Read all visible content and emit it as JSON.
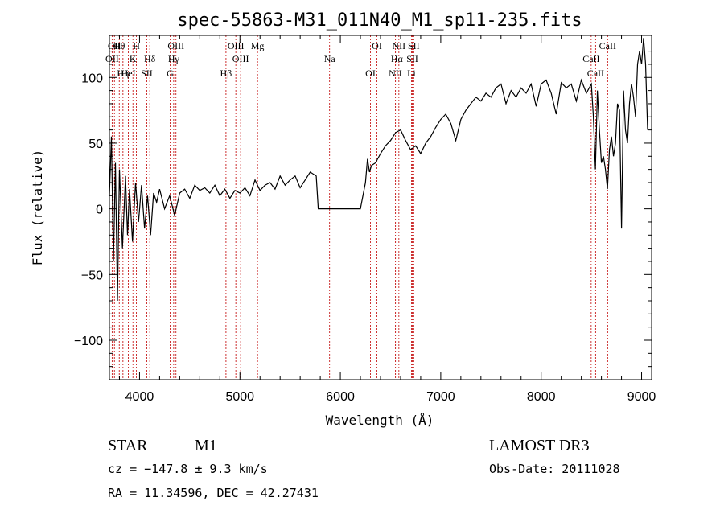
{
  "chart_data": {
    "type": "line",
    "title": "spec-55863-M31_011N40_M1_sp11-235.fits",
    "xlabel": "Wavelength (Å)",
    "ylabel": "Flux (relative)",
    "xlim": [
      3700,
      9100
    ],
    "ylim": [
      -130,
      132
    ],
    "xticks": [
      4000,
      5000,
      6000,
      7000,
      8000,
      9000
    ],
    "yticks": [
      -100,
      -50,
      0,
      50,
      100
    ],
    "grid": false,
    "series": [
      {
        "name": "flux",
        "x": [
          3700,
          3720,
          3740,
          3760,
          3780,
          3800,
          3830,
          3860,
          3880,
          3900,
          3930,
          3960,
          3990,
          4020,
          4050,
          4080,
          4110,
          4140,
          4170,
          4200,
          4250,
          4300,
          4350,
          4400,
          4450,
          4500,
          4550,
          4600,
          4650,
          4700,
          4750,
          4800,
          4850,
          4900,
          4950,
          5000,
          5050,
          5100,
          5150,
          5200,
          5250,
          5300,
          5350,
          5400,
          5450,
          5500,
          5550,
          5600,
          5650,
          5700,
          5760,
          5780,
          5800,
          5900,
          6000,
          6100,
          6200,
          6250,
          6270,
          6290,
          6310,
          6350,
          6400,
          6450,
          6500,
          6550,
          6600,
          6650,
          6700,
          6750,
          6800,
          6850,
          6900,
          6950,
          7000,
          7050,
          7100,
          7150,
          7200,
          7250,
          7300,
          7350,
          7400,
          7450,
          7500,
          7550,
          7600,
          7650,
          7700,
          7750,
          7800,
          7850,
          7900,
          7950,
          8000,
          8050,
          8100,
          8150,
          8200,
          8250,
          8300,
          8350,
          8400,
          8450,
          8500,
          8520,
          8540,
          8560,
          8580,
          8600,
          8620,
          8640,
          8660,
          8680,
          8700,
          8720,
          8740,
          8760,
          8780,
          8800,
          8820,
          8840,
          8860,
          8880,
          8900,
          8920,
          8940,
          8960,
          8980,
          9000,
          9020,
          9040,
          9060
        ],
        "y": [
          10,
          55,
          -40,
          35,
          -70,
          30,
          -30,
          25,
          -20,
          15,
          -25,
          20,
          -10,
          18,
          -15,
          10,
          -20,
          12,
          5,
          15,
          0,
          10,
          -5,
          12,
          15,
          8,
          18,
          14,
          16,
          12,
          18,
          10,
          15,
          8,
          14,
          12,
          16,
          10,
          22,
          14,
          18,
          20,
          15,
          25,
          18,
          22,
          25,
          16,
          22,
          28,
          25,
          0,
          0,
          0,
          0,
          0,
          0,
          20,
          38,
          28,
          33,
          35,
          42,
          48,
          52,
          58,
          60,
          52,
          45,
          48,
          42,
          50,
          55,
          62,
          68,
          72,
          65,
          52,
          68,
          75,
          80,
          85,
          82,
          88,
          85,
          92,
          95,
          80,
          90,
          85,
          92,
          88,
          95,
          78,
          95,
          98,
          88,
          72,
          96,
          92,
          95,
          82,
          98,
          88,
          95,
          70,
          30,
          90,
          60,
          35,
          40,
          30,
          15,
          45,
          55,
          40,
          50,
          80,
          75,
          -15,
          90,
          60,
          50,
          80,
          95,
          85,
          70,
          110,
          120,
          110,
          130,
          110,
          60
        ]
      }
    ],
    "lines": [
      {
        "label": "Hθ",
        "x": 3798
      },
      {
        "label": "OII",
        "x": 3727
      },
      {
        "label": "Hη",
        "x": 3835
      },
      {
        "label": "OII",
        "x": 3750
      },
      {
        "label": "K",
        "x": 3934
      },
      {
        "label": "HeI",
        "x": 3889
      },
      {
        "label": "H",
        "x": 3969
      },
      {
        "label": "Hδ",
        "x": 4102
      },
      {
        "label": "SII",
        "x": 4072
      },
      {
        "label": "OIII",
        "x": 4363
      },
      {
        "label": "Hγ",
        "x": 4340
      },
      {
        "label": "G",
        "x": 4305
      },
      {
        "label": "OIII",
        "x": 4959
      },
      {
        "label": "OIII",
        "x": 5007
      },
      {
        "label": "Hβ",
        "x": 4861
      },
      {
        "label": "Mg",
        "x": 5175
      },
      {
        "label": "Na",
        "x": 5893
      },
      {
        "label": "OI",
        "x": 6300
      },
      {
        "label": "OI",
        "x": 6364
      },
      {
        "label": "Hα",
        "x": 6563
      },
      {
        "label": "NII",
        "x": 6548
      },
      {
        "label": "NII",
        "x": 6583
      },
      {
        "label": "SII",
        "x": 6717
      },
      {
        "label": "Li",
        "x": 6708
      },
      {
        "label": "SII",
        "x": 6731
      },
      {
        "label": "CaII",
        "x": 8498
      },
      {
        "label": "CaII",
        "x": 8542
      },
      {
        "label": "CaII",
        "x": 8662
      }
    ]
  },
  "info": {
    "class": "STAR",
    "subclass": "M1",
    "survey": "LAMOST DR3",
    "cz": "cz = −147.8 ± 9.3 km/s",
    "obs_date": "Obs-Date: 20111028",
    "coords": "RA =  11.34596, DEC =  42.27431"
  },
  "colors": {
    "spectrum": "#000000",
    "line_markers": "#c00000",
    "background": "#ffffff"
  }
}
